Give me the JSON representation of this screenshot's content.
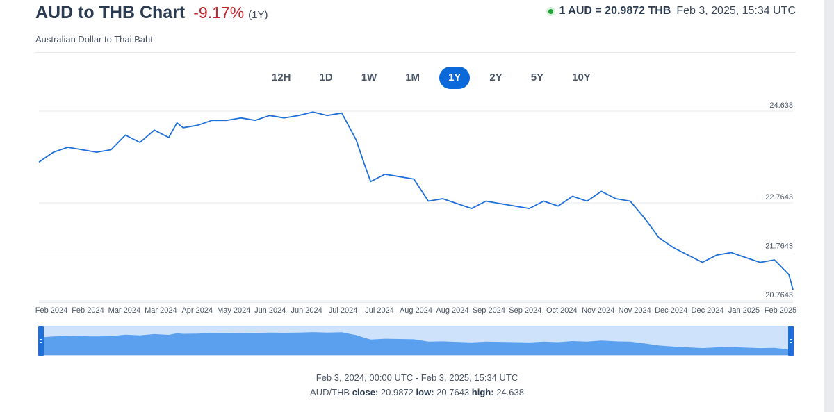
{
  "header": {
    "title": "AUD to THB Chart",
    "change": "-9.17%",
    "period": "(1Y)",
    "subtitle": "Australian Dollar to Thai Baht",
    "rate": "1 AUD = 20.9872 THB",
    "rate_time": "Feb 3, 2025, 15:34 UTC"
  },
  "tabs": [
    {
      "label": "12H",
      "active": false
    },
    {
      "label": "1D",
      "active": false
    },
    {
      "label": "1W",
      "active": false
    },
    {
      "label": "1M",
      "active": false
    },
    {
      "label": "1Y",
      "active": true
    },
    {
      "label": "2Y",
      "active": false
    },
    {
      "label": "5Y",
      "active": false
    },
    {
      "label": "10Y",
      "active": false
    }
  ],
  "footer": {
    "range": "Feb 3, 2024, 00:00 UTC - Feb 3, 2025, 15:34 UTC",
    "pair": "AUD/THB",
    "close_label": "close:",
    "close": "20.9872",
    "low_label": "low:",
    "low": "20.7643",
    "high_label": "high:",
    "high": "24.638"
  },
  "colors": {
    "line": "#1f6fd8",
    "navigator_fill": "#5aa0ef",
    "navigator_bg": "#cfe2fb",
    "handle": "#1f6fd8",
    "grid": "#e6e9ee"
  },
  "chart_data": {
    "type": "line",
    "series": [
      {
        "x": [
          "2024-02-03",
          "2024-02-10",
          "2024-02-17",
          "2024-02-24",
          "2024-03-02",
          "2024-03-09",
          "2024-03-16",
          "2024-03-23",
          "2024-03-30",
          "2024-04-06",
          "2024-04-10",
          "2024-04-13",
          "2024-04-20",
          "2024-04-27",
          "2024-05-04",
          "2024-05-11",
          "2024-05-18",
          "2024-05-25",
          "2024-06-01",
          "2024-06-08",
          "2024-06-15",
          "2024-06-22",
          "2024-06-29",
          "2024-07-06",
          "2024-07-10",
          "2024-07-13",
          "2024-07-20",
          "2024-07-27",
          "2024-08-03",
          "2024-08-10",
          "2024-08-17",
          "2024-08-24",
          "2024-08-31",
          "2024-09-07",
          "2024-09-14",
          "2024-09-21",
          "2024-09-28",
          "2024-10-05",
          "2024-10-12",
          "2024-10-19",
          "2024-10-26",
          "2024-11-02",
          "2024-11-09",
          "2024-11-16",
          "2024-11-23",
          "2024-11-30",
          "2024-12-07",
          "2024-12-14",
          "2024-12-21",
          "2024-12-28",
          "2025-01-04",
          "2025-01-11",
          "2025-01-18",
          "2025-01-25",
          "2025-02-01",
          "2025-02-03"
        ],
        "y": [
          23.6,
          23.8,
          23.9,
          23.85,
          23.8,
          23.85,
          24.15,
          24.0,
          24.25,
          24.1,
          24.4,
          24.3,
          24.35,
          24.45,
          24.45,
          24.5,
          24.45,
          24.55,
          24.5,
          24.55,
          24.62,
          24.55,
          24.6,
          24.05,
          23.55,
          23.2,
          23.35,
          23.3,
          23.25,
          22.8,
          22.85,
          22.75,
          22.65,
          22.8,
          22.75,
          22.7,
          22.65,
          22.8,
          22.7,
          22.9,
          22.8,
          23.0,
          22.85,
          22.8,
          22.45,
          22.05,
          21.85,
          21.7,
          21.55,
          21.7,
          21.75,
          21.65,
          21.55,
          21.6,
          21.3,
          20.99
        ],
        "stroke": "#1f6fd8"
      }
    ],
    "x_tick_labels": [
      "Feb 2024",
      "Feb 2024",
      "Mar 2024",
      "Mar 2024",
      "Apr 2024",
      "May 2024",
      "Jun 2024",
      "Jun 2024",
      "Jul 2024",
      "Jul 2024",
      "Aug 2024",
      "Aug 2024",
      "Sep 2024",
      "Sep 2024",
      "Oct 2024",
      "Nov 2024",
      "Nov 2024",
      "Dec 2024",
      "Dec 2024",
      "Jan 2025",
      "Feb 2025"
    ],
    "y_tick_labels": [
      "24.638",
      "22.7643",
      "21.7643",
      "20.7643"
    ],
    "y_ticks": [
      24.638,
      22.7643,
      21.7643,
      20.7643
    ],
    "ylim": [
      20.7643,
      24.638
    ],
    "grid": "horizontal",
    "yaxis_side": "right"
  }
}
